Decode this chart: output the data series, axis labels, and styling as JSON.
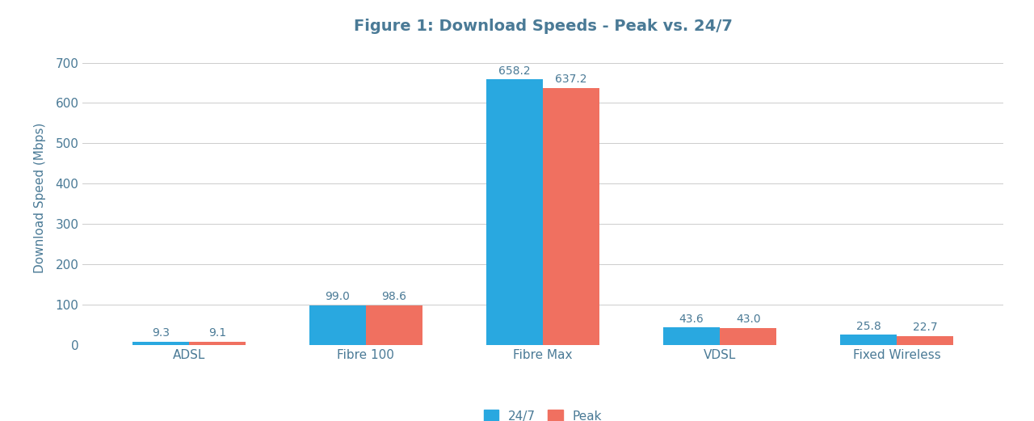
{
  "title": "Figure 1: Download Speeds - Peak vs. 24/7",
  "ylabel": "Download Speed (Mbps)",
  "categories": [
    "ADSL",
    "Fibre 100",
    "Fibre Max",
    "VDSL",
    "Fixed Wireless"
  ],
  "values_247": [
    9.3,
    99.0,
    658.2,
    43.6,
    25.8
  ],
  "values_peak": [
    9.1,
    98.6,
    637.2,
    43.0,
    22.7
  ],
  "color_247": "#29a8e0",
  "color_peak": "#f07060",
  "label_247": "24/7",
  "label_peak": "Peak",
  "ylim": [
    0,
    730
  ],
  "yticks": [
    0,
    100,
    200,
    300,
    400,
    500,
    600,
    700
  ],
  "background_color": "#ffffff",
  "grid_color": "#cccccc",
  "title_color": "#4a7a96",
  "tick_color": "#4a7a96",
  "label_color": "#4a7a96",
  "bar_width": 0.32,
  "title_fontsize": 14,
  "axis_label_fontsize": 11,
  "tick_fontsize": 11,
  "value_fontsize": 10,
  "legend_fontsize": 11
}
